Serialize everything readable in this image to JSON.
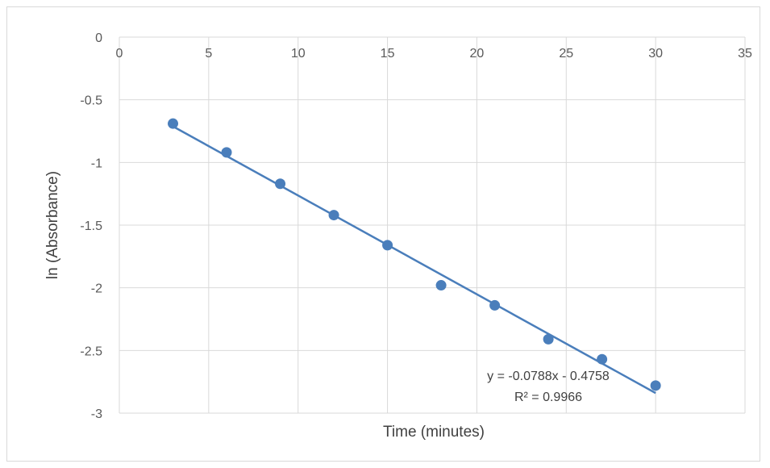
{
  "chart_data": {
    "type": "scatter",
    "title": "",
    "xlabel": "Time (minutes)",
    "ylabel": "ln (Absorbance)",
    "xlim": [
      0,
      35
    ],
    "ylim": [
      -3,
      0
    ],
    "x_ticks": [
      0,
      5,
      10,
      15,
      20,
      25,
      30,
      35
    ],
    "y_ticks": [
      0,
      -0.5,
      -1,
      -1.5,
      -2,
      -2.5,
      -3
    ],
    "x_tick_labels": [
      "0",
      "5",
      "10",
      "15",
      "20",
      "25",
      "30",
      "35"
    ],
    "y_tick_labels": [
      "0",
      "-0.5",
      "-1",
      "-1.5",
      "-2",
      "-2.5",
      "-3"
    ],
    "grid": true,
    "legend": "none",
    "series": [
      {
        "x": [
          3,
          6,
          9,
          12,
          15,
          18,
          21,
          24,
          27,
          30
        ],
        "y": [
          -0.69,
          -0.92,
          -1.17,
          -1.42,
          -1.66,
          -1.98,
          -2.14,
          -2.41,
          -2.57,
          -2.78
        ],
        "color": "#4a7ebb"
      }
    ],
    "trendline": {
      "type": "linear",
      "slope": -0.0788,
      "intercept": -0.4758,
      "x_range": [
        3,
        30
      ],
      "color": "#4a7ebb",
      "equation_label": "y = -0.0788x - 0.4758",
      "r2_label": "R² = 0.9966"
    },
    "colors": {
      "grid": "#d9d9d9",
      "tick_text": "#595959",
      "axis_title": "#404040"
    }
  }
}
